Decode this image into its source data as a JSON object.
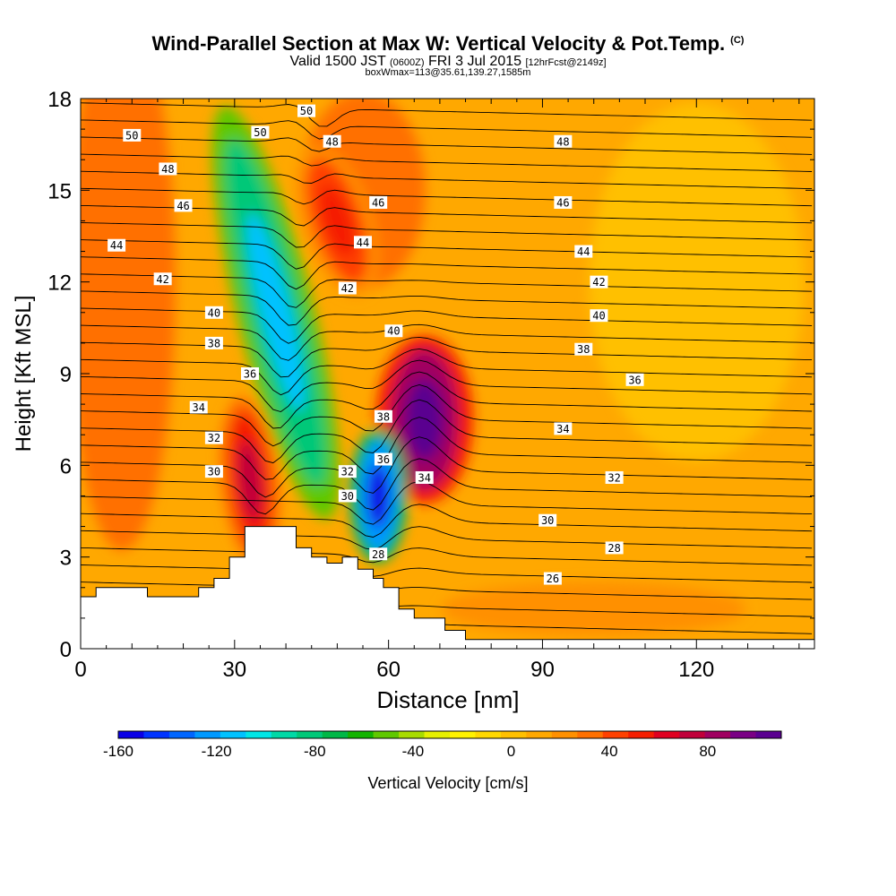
{
  "title": {
    "main": "Wind-Parallel Section at Max W: Vertical Velocity & Pot.Temp.",
    "copyright": "(C)",
    "valid_prefix": "Valid 1500 JST",
    "valid_utc": "(0600Z)",
    "valid_date": "FRI 3 Jul 2015",
    "forecast": "[12hrFcst@2149z]",
    "box_info": "boxWmax=113@35.61,139.27,1585m"
  },
  "colors": {
    "background": "#ffffff",
    "contour": "#000000",
    "terrain": "#ffffff",
    "colorbar": [
      "#0a00e6",
      "#0033ff",
      "#0066ff",
      "#0099ff",
      "#00c2ff",
      "#00e6e6",
      "#00d9a6",
      "#00c878",
      "#00b846",
      "#12b400",
      "#5fc800",
      "#a8dc00",
      "#e6f000",
      "#fff200",
      "#ffd800",
      "#ffc000",
      "#ffa800",
      "#ff9000",
      "#ff7000",
      "#ff4000",
      "#f51d00",
      "#e00020",
      "#c0003a",
      "#a00060",
      "#7a0085",
      "#5a0090"
    ]
  },
  "chart_data": {
    "type": "heatmap",
    "xlabel": "Distance [nm]",
    "ylabel": "Height [Kft MSL]",
    "xlim": [
      0,
      143
    ],
    "ylim": [
      0,
      18
    ],
    "x_ticks": [
      0,
      30,
      60,
      90,
      120
    ],
    "y_ticks": [
      0,
      3,
      6,
      9,
      12,
      15,
      18
    ],
    "colorbar": {
      "label": "Vertical Velocity [cm/s]",
      "ticks": [
        -160,
        -120,
        -80,
        -40,
        0,
        40,
        80
      ],
      "range": [
        -160,
        110
      ]
    },
    "vertical_velocity_features": [
      {
        "name": "strong updraft",
        "x": 67,
        "y": 7.5,
        "w": 110
      },
      {
        "name": "strong downdraft",
        "x": 58,
        "y": 5,
        "w": -160
      },
      {
        "name": "updraft",
        "x": 33,
        "y": 5.5,
        "w": 70
      },
      {
        "name": "downdraft band",
        "x": 38,
        "y": 11,
        "w": -110
      },
      {
        "name": "upper updraft",
        "x": 50,
        "y": 14,
        "w": 55
      }
    ],
    "theta_contour_labels": [
      {
        "text": "50",
        "x": 10,
        "y": 16.8
      },
      {
        "text": "48",
        "x": 17,
        "y": 15.7
      },
      {
        "text": "46",
        "x": 20,
        "y": 14.5
      },
      {
        "text": "44",
        "x": 7,
        "y": 13.2
      },
      {
        "text": "42",
        "x": 16,
        "y": 12.1
      },
      {
        "text": "40",
        "x": 26,
        "y": 11.0
      },
      {
        "text": "38",
        "x": 26,
        "y": 10.0
      },
      {
        "text": "36",
        "x": 33,
        "y": 9.0
      },
      {
        "text": "34",
        "x": 23,
        "y": 7.9
      },
      {
        "text": "32",
        "x": 26,
        "y": 6.9
      },
      {
        "text": "30",
        "x": 26,
        "y": 5.8
      },
      {
        "text": "50",
        "x": 35,
        "y": 16.9
      },
      {
        "text": "50",
        "x": 44,
        "y": 17.6
      },
      {
        "text": "48",
        "x": 49,
        "y": 16.6
      },
      {
        "text": "46",
        "x": 58,
        "y": 14.6
      },
      {
        "text": "44",
        "x": 55,
        "y": 13.3
      },
      {
        "text": "42",
        "x": 52,
        "y": 11.8
      },
      {
        "text": "40",
        "x": 61,
        "y": 10.4
      },
      {
        "text": "38",
        "x": 59,
        "y": 7.6
      },
      {
        "text": "36",
        "x": 59,
        "y": 6.2
      },
      {
        "text": "34",
        "x": 67,
        "y": 5.6
      },
      {
        "text": "32",
        "x": 52,
        "y": 5.8
      },
      {
        "text": "30",
        "x": 52,
        "y": 5.0
      },
      {
        "text": "28",
        "x": 58,
        "y": 3.1
      },
      {
        "text": "48",
        "x": 94,
        "y": 16.6
      },
      {
        "text": "46",
        "x": 94,
        "y": 14.6
      },
      {
        "text": "44",
        "x": 98,
        "y": 13.0
      },
      {
        "text": "42",
        "x": 101,
        "y": 12.0
      },
      {
        "text": "40",
        "x": 101,
        "y": 10.9
      },
      {
        "text": "38",
        "x": 98,
        "y": 9.8
      },
      {
        "text": "36",
        "x": 108,
        "y": 8.8
      },
      {
        "text": "34",
        "x": 94,
        "y": 7.2
      },
      {
        "text": "32",
        "x": 104,
        "y": 5.6
      },
      {
        "text": "30",
        "x": 91,
        "y": 4.2
      },
      {
        "text": "28",
        "x": 104,
        "y": 3.3
      },
      {
        "text": "26",
        "x": 92,
        "y": 2.3
      }
    ],
    "terrain_profile": {
      "x": [
        0,
        3,
        3,
        13,
        13,
        23,
        23,
        26,
        26,
        29,
        29,
        32,
        32,
        42,
        42,
        45,
        45,
        48,
        48,
        51,
        51,
        54,
        54,
        57,
        57,
        59,
        59,
        62,
        62,
        65,
        65,
        71,
        71,
        75,
        75,
        143
      ],
      "y": [
        1.7,
        1.7,
        2.0,
        2.0,
        1.7,
        1.7,
        2.0,
        2.0,
        2.3,
        2.3,
        3.0,
        3.0,
        4.0,
        4.0,
        3.3,
        3.3,
        3.0,
        3.0,
        2.8,
        2.8,
        3.0,
        3.0,
        2.6,
        2.6,
        2.3,
        2.3,
        2.0,
        2.0,
        1.3,
        1.3,
        1.0,
        1.0,
        0.6,
        0.6,
        0.3,
        0.3
      ]
    }
  }
}
